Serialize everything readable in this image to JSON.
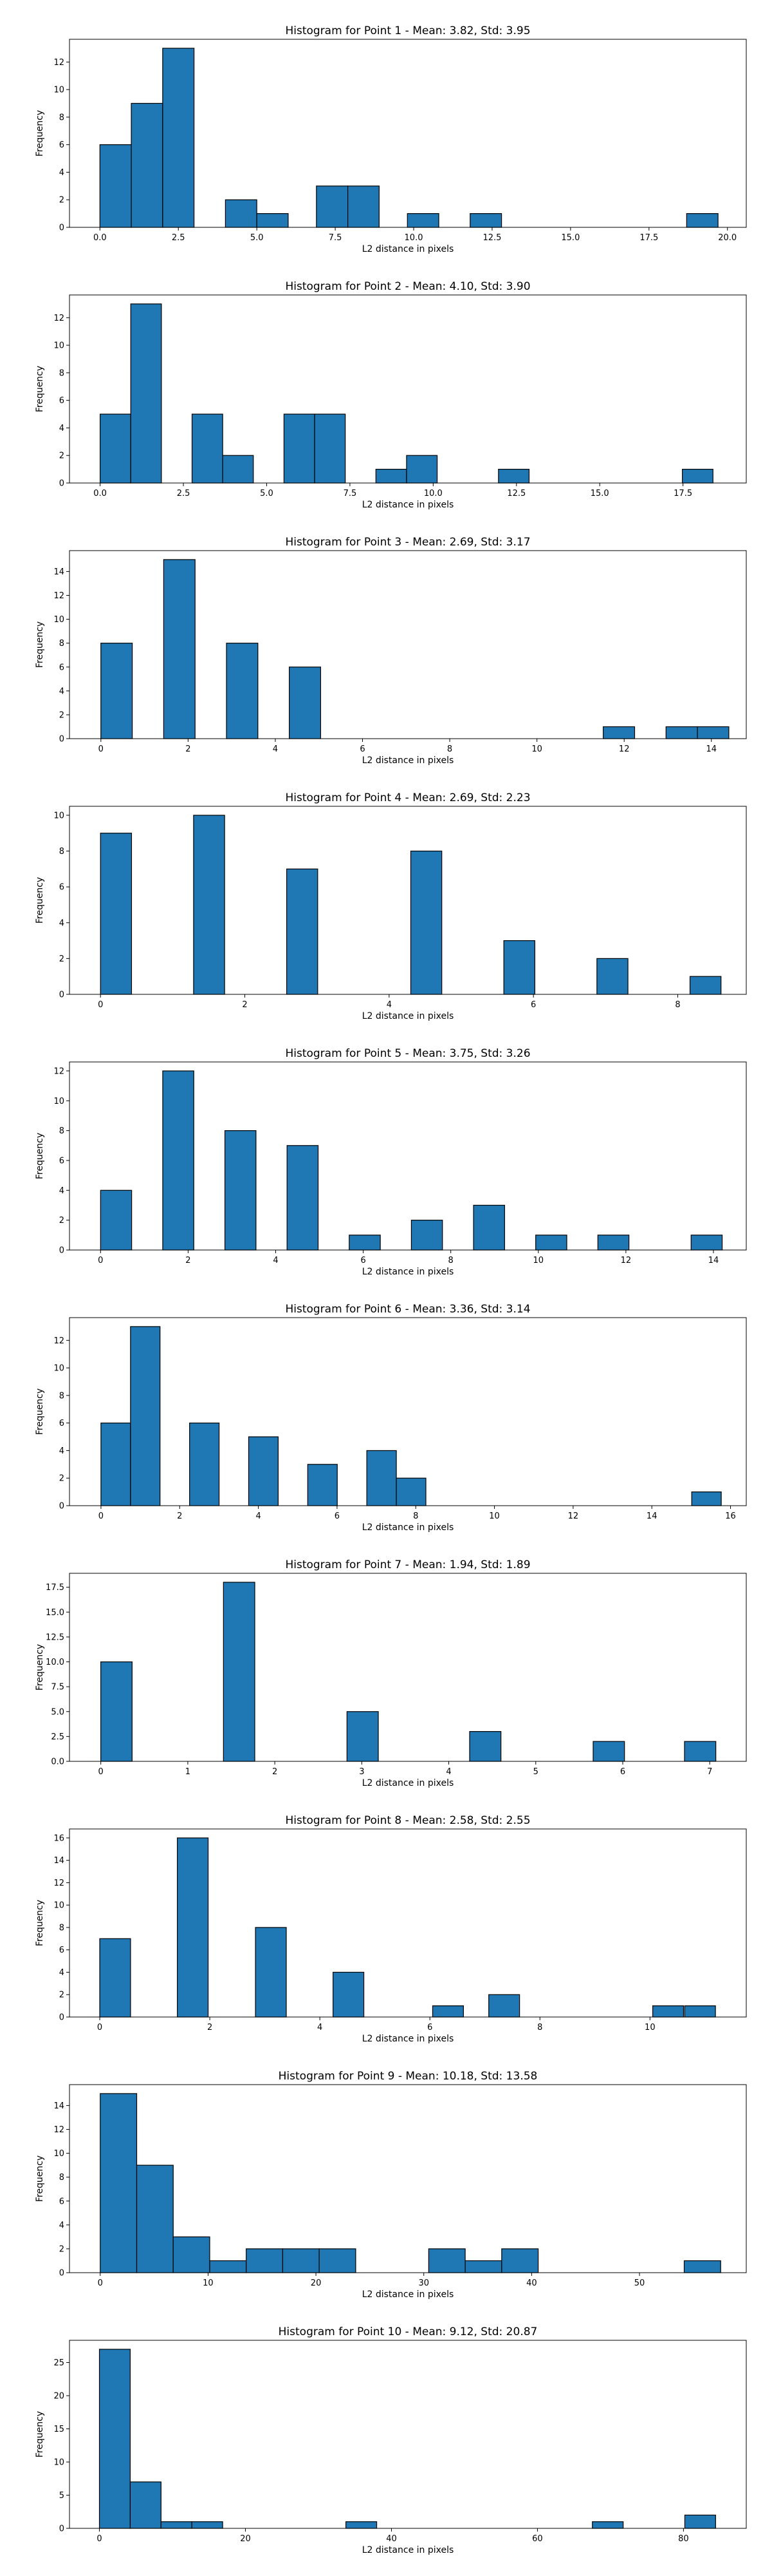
{
  "chart_data": [
    {
      "type": "bar",
      "title": "Histogram for Point 1 - Mean: 3.82, Std: 3.95",
      "xlabel": "L2 distance in pixels",
      "ylabel": "Frequency",
      "xlim": [
        -0.97,
        20.6
      ],
      "ylim": [
        0,
        13.65
      ],
      "xticks": [
        0,
        2.5,
        5,
        7.5,
        10,
        12.5,
        15,
        17.5,
        20
      ],
      "xtick_labels": [
        "0.0",
        "2.5",
        "5.0",
        "7.5",
        "10.0",
        "12.5",
        "15.0",
        "17.5",
        "20.0"
      ],
      "yticks": [
        0,
        2,
        4,
        6,
        8,
        10,
        12
      ],
      "yticks_labels": [
        "0",
        "2",
        "4",
        "6",
        "8",
        "10",
        "12"
      ],
      "bins": [
        [
          0,
          1,
          6
        ],
        [
          1,
          2,
          9
        ],
        [
          2,
          3,
          13
        ],
        [
          4,
          5,
          2
        ],
        [
          5,
          6,
          1
        ],
        [
          6.9,
          7.9,
          3
        ],
        [
          7.9,
          8.9,
          3
        ],
        [
          9.8,
          10.8,
          1
        ],
        [
          11.8,
          12.8,
          1
        ],
        [
          18.7,
          19.7,
          1
        ]
      ]
    },
    {
      "type": "bar",
      "title": "Histogram for Point 2 - Mean: 4.10, Std: 3.90",
      "xlabel": "L2 distance in pixels",
      "ylabel": "Frequency",
      "xlim": [
        -0.92,
        19.4
      ],
      "ylim": [
        0,
        13.65
      ],
      "xticks": [
        0,
        2.5,
        5,
        7.5,
        10,
        12.5,
        15,
        17.5
      ],
      "xtick_labels": [
        "0.0",
        "2.5",
        "5.0",
        "7.5",
        "10.0",
        "12.5",
        "15.0",
        "17.5"
      ],
      "yticks": [
        0,
        2,
        4,
        6,
        8,
        10,
        12
      ],
      "yticks_labels": [
        "0",
        "2",
        "4",
        "6",
        "8",
        "10",
        "12"
      ],
      "bins": [
        [
          0,
          0.92,
          5
        ],
        [
          0.92,
          1.84,
          13
        ],
        [
          2.76,
          3.68,
          5
        ],
        [
          3.68,
          4.6,
          2
        ],
        [
          5.52,
          6.44,
          5
        ],
        [
          6.44,
          7.36,
          5
        ],
        [
          8.28,
          9.2,
          1
        ],
        [
          9.2,
          10.12,
          2
        ],
        [
          11.96,
          12.88,
          1
        ],
        [
          17.48,
          18.4,
          1
        ]
      ]
    },
    {
      "type": "bar",
      "title": "Histogram for Point 3 - Mean: 2.69, Std: 3.17",
      "xlabel": "L2 distance in pixels",
      "ylabel": "Frequency",
      "xlim": [
        -0.72,
        14.8
      ],
      "ylim": [
        0,
        15.75
      ],
      "xticks": [
        0,
        2,
        4,
        6,
        8,
        10,
        12,
        14
      ],
      "xtick_labels": [
        "0",
        "2",
        "4",
        "6",
        "8",
        "10",
        "12",
        "14"
      ],
      "yticks": [
        0,
        2,
        4,
        6,
        8,
        10,
        12,
        14
      ],
      "yticks_labels": [
        "0",
        "2",
        "4",
        "6",
        "8",
        "10",
        "12",
        "14"
      ],
      "bins": [
        [
          0,
          0.72,
          8
        ],
        [
          1.44,
          2.16,
          15
        ],
        [
          2.88,
          3.6,
          8
        ],
        [
          4.32,
          5.04,
          6
        ],
        [
          11.52,
          12.24,
          1
        ],
        [
          12.96,
          13.68,
          1
        ],
        [
          13.68,
          14.4,
          1
        ]
      ]
    },
    {
      "type": "bar",
      "title": "Histogram for Point 4 - Mean: 2.69, Std: 2.23",
      "xlabel": "L2 distance in pixels",
      "ylabel": "Frequency",
      "xlim": [
        -0.43,
        8.95
      ],
      "ylim": [
        0,
        10.5
      ],
      "xticks": [
        0,
        2,
        4,
        6,
        8
      ],
      "xtick_labels": [
        "0",
        "2",
        "4",
        "6",
        "8"
      ],
      "yticks": [
        0,
        2,
        4,
        6,
        8,
        10
      ],
      "yticks_labels": [
        "0",
        "2",
        "4",
        "6",
        "8",
        "10"
      ],
      "bins": [
        [
          0,
          0.43,
          9
        ],
        [
          1.29,
          1.72,
          10
        ],
        [
          2.58,
          3.01,
          7
        ],
        [
          4.3,
          4.73,
          8
        ],
        [
          5.59,
          6.02,
          3
        ],
        [
          6.88,
          7.31,
          2
        ],
        [
          8.17,
          8.6,
          1
        ]
      ]
    },
    {
      "type": "bar",
      "title": "Histogram for Point 5 - Mean: 3.75, Std: 3.26",
      "xlabel": "L2 distance in pixels",
      "ylabel": "Frequency",
      "xlim": [
        -0.71,
        14.75
      ],
      "ylim": [
        0,
        12.6
      ],
      "xticks": [
        0,
        2,
        4,
        6,
        8,
        10,
        12,
        14
      ],
      "xtick_labels": [
        "0",
        "2",
        "4",
        "6",
        "8",
        "10",
        "12",
        "14"
      ],
      "yticks": [
        0,
        2,
        4,
        6,
        8,
        10,
        12
      ],
      "yticks_labels": [
        "0",
        "2",
        "4",
        "6",
        "8",
        "10",
        "12"
      ],
      "bins": [
        [
          0,
          0.71,
          4
        ],
        [
          1.42,
          2.13,
          12
        ],
        [
          2.84,
          3.55,
          8
        ],
        [
          4.26,
          4.97,
          7
        ],
        [
          5.68,
          6.39,
          1
        ],
        [
          7.1,
          7.81,
          2
        ],
        [
          8.52,
          9.23,
          3
        ],
        [
          9.94,
          10.65,
          1
        ],
        [
          11.36,
          12.07,
          1
        ],
        [
          13.49,
          14.2,
          1
        ]
      ]
    },
    {
      "type": "bar",
      "title": "Histogram for Point 6 - Mean: 3.36, Std: 3.14",
      "xlabel": "L2 distance in pixels",
      "ylabel": "Frequency",
      "xlim": [
        -0.8,
        16.4
      ],
      "ylim": [
        0,
        13.65
      ],
      "xticks": [
        0,
        2,
        4,
        6,
        8,
        10,
        12,
        14,
        16
      ],
      "xtick_labels": [
        "0",
        "2",
        "4",
        "6",
        "8",
        "10",
        "12",
        "14",
        "16"
      ],
      "yticks": [
        0,
        2,
        4,
        6,
        8,
        10,
        12
      ],
      "yticks_labels": [
        "0",
        "2",
        "4",
        "6",
        "8",
        "10",
        "12"
      ],
      "bins": [
        [
          0,
          0.98,
          6
        ],
        [
          0.98,
          1.96,
          13
        ],
        [
          2.94,
          3.92,
          6
        ],
        [
          4.9,
          5.88,
          5
        ],
        [
          6.86,
          7.84,
          3
        ],
        [
          8.82,
          9.8,
          4
        ],
        [
          9.8,
          10.78,
          2
        ],
        [
          19.6,
          20.58,
          1
        ]
      ],
      "note_bins_scale": 0.766
    },
    {
      "type": "bar",
      "title": "Histogram for Point 7 - Mean: 1.94, Std: 1.89",
      "xlabel": "L2 distance in pixels",
      "ylabel": "Frequency",
      "xlim": [
        -0.36,
        7.42
      ],
      "ylim": [
        0,
        18.9
      ],
      "xticks": [
        0,
        1,
        2,
        3,
        4,
        5,
        6,
        7
      ],
      "xtick_labels": [
        "0",
        "1",
        "2",
        "3",
        "4",
        "5",
        "6",
        "7"
      ],
      "yticks": [
        0,
        2.5,
        5,
        7.5,
        10,
        12.5,
        15,
        17.5
      ],
      "yticks_labels": [
        "0.0",
        "2.5",
        "5.0",
        "7.5",
        "10.0",
        "12.5",
        "15.0",
        "17.5"
      ],
      "bins": [
        [
          0,
          0.36,
          10
        ],
        [
          1.41,
          1.77,
          18
        ],
        [
          2.83,
          3.19,
          5
        ],
        [
          4.24,
          4.6,
          3
        ],
        [
          5.66,
          6.02,
          2
        ],
        [
          6.71,
          7.07,
          2
        ]
      ]
    },
    {
      "type": "bar",
      "title": "Histogram for Point 8 - Mean: 2.58, Std: 2.55",
      "xlabel": "L2 distance in pixels",
      "ylabel": "Frequency",
      "xlim": [
        -0.55,
        11.75
      ],
      "ylim": [
        0,
        16.8
      ],
      "xticks": [
        0,
        2,
        4,
        6,
        8,
        10
      ],
      "xtick_labels": [
        "0",
        "2",
        "4",
        "6",
        "8",
        "10"
      ],
      "yticks": [
        0,
        2,
        4,
        6,
        8,
        10,
        12,
        14,
        16
      ],
      "yticks_labels": [
        "0",
        "2",
        "4",
        "6",
        "8",
        "10",
        "12",
        "14",
        "16"
      ],
      "bins": [
        [
          0,
          0.56,
          7
        ],
        [
          1.41,
          1.97,
          16
        ],
        [
          2.83,
          3.39,
          8
        ],
        [
          4.24,
          4.8,
          4
        ],
        [
          6.05,
          6.61,
          1
        ],
        [
          7.07,
          7.63,
          2
        ],
        [
          10.05,
          10.61,
          1
        ],
        [
          10.63,
          11.19,
          1
        ]
      ]
    },
    {
      "type": "bar",
      "title": "Histogram for Point 9 - Mean: 10.18, Std: 13.58",
      "xlabel": "L2 distance in pixels",
      "ylabel": "Frequency",
      "xlim": [
        -2.85,
        59.9
      ],
      "ylim": [
        0,
        15.75
      ],
      "xticks": [
        0,
        10,
        20,
        30,
        40,
        50
      ],
      "xtick_labels": [
        "0",
        "10",
        "20",
        "30",
        "40",
        "50"
      ],
      "yticks": [
        0,
        2,
        4,
        6,
        8,
        10,
        12,
        14
      ],
      "yticks_labels": [
        "0",
        "2",
        "4",
        "6",
        "8",
        "10",
        "12",
        "14"
      ],
      "bins": [
        [
          0,
          3.6,
          15
        ],
        [
          3.6,
          7.2,
          9
        ],
        [
          7.2,
          10.8,
          3
        ],
        [
          10.8,
          14.4,
          1
        ],
        [
          14.4,
          18,
          2
        ],
        [
          18,
          21.6,
          2
        ],
        [
          21.6,
          25.2,
          2
        ],
        [
          32.4,
          36,
          2
        ],
        [
          36,
          39.6,
          1
        ],
        [
          39.6,
          43.2,
          2
        ],
        [
          57.6,
          61.2,
          1
        ]
      ],
      "note_bins_scale": 0.94
    },
    {
      "type": "bar",
      "title": "Histogram for Point 10 - Mean: 9.12, Std: 20.87",
      "xlabel": "L2 distance in pixels",
      "ylabel": "Frequency",
      "xlim": [
        -4.1,
        88.6
      ],
      "ylim": [
        0,
        28.35
      ],
      "xticks": [
        0,
        20,
        40,
        60,
        80
      ],
      "xtick_labels": [
        "0",
        "20",
        "40",
        "60",
        "80"
      ],
      "yticks": [
        0,
        5,
        10,
        15,
        20,
        25
      ],
      "yticks_labels": [
        "0",
        "5",
        "10",
        "15",
        "20",
        "25"
      ],
      "bins": [
        [
          0,
          4.22,
          27
        ],
        [
          4.22,
          8.44,
          7
        ],
        [
          8.44,
          12.66,
          1
        ],
        [
          12.66,
          16.88,
          1
        ],
        [
          33.76,
          37.98,
          1
        ],
        [
          67.52,
          71.74,
          1
        ],
        [
          80.18,
          84.4,
          2
        ]
      ]
    }
  ]
}
